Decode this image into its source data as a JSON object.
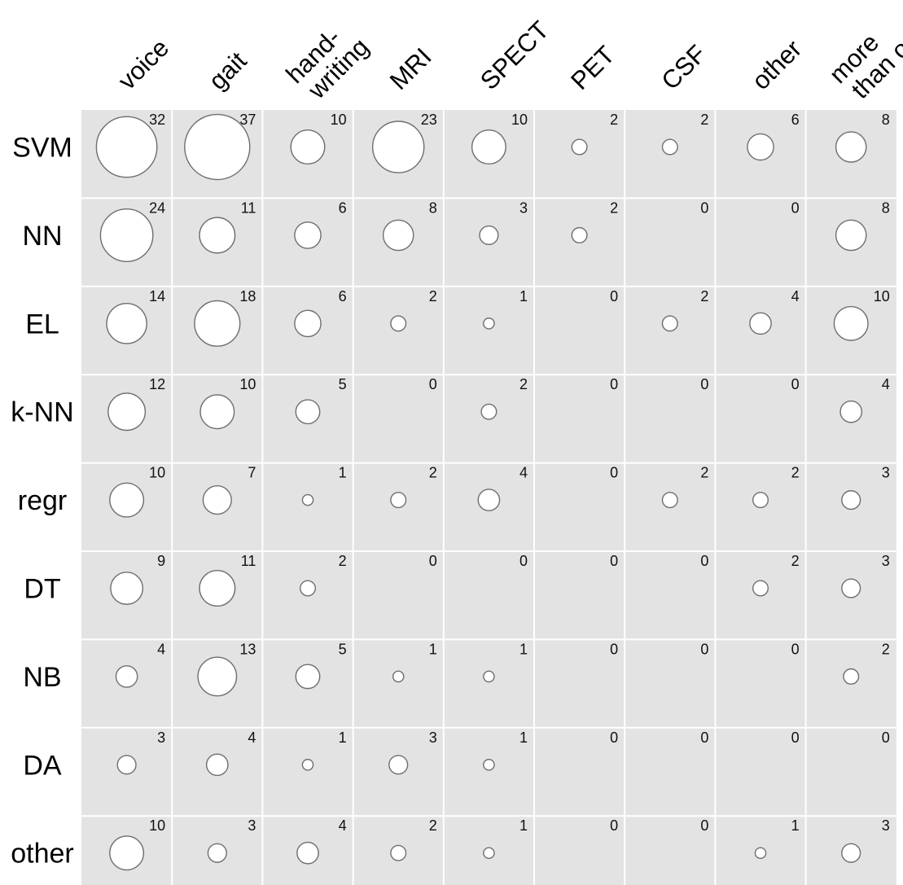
{
  "chart_data": {
    "type": "bubble-matrix",
    "columns": [
      [
        "voice"
      ],
      [
        "gait"
      ],
      [
        "hand-",
        "writing"
      ],
      [
        "MRI"
      ],
      [
        "SPECT"
      ],
      [
        "PET"
      ],
      [
        "CSF"
      ],
      [
        "other"
      ],
      [
        "more",
        "than one"
      ]
    ],
    "rows": [
      "SVM",
      "NN",
      "EL",
      "k-NN",
      "regr",
      "DT",
      "NB",
      "DA",
      "other"
    ],
    "values": [
      [
        32,
        37,
        10,
        23,
        10,
        2,
        2,
        6,
        8
      ],
      [
        24,
        11,
        6,
        8,
        3,
        2,
        0,
        0,
        8
      ],
      [
        14,
        18,
        6,
        2,
        1,
        0,
        2,
        4,
        10
      ],
      [
        12,
        10,
        5,
        0,
        2,
        0,
        0,
        0,
        4
      ],
      [
        10,
        7,
        1,
        2,
        4,
        0,
        2,
        2,
        3
      ],
      [
        9,
        11,
        2,
        0,
        0,
        0,
        0,
        2,
        3
      ],
      [
        4,
        13,
        5,
        1,
        1,
        0,
        0,
        0,
        2
      ],
      [
        3,
        4,
        1,
        3,
        1,
        0,
        0,
        0,
        0
      ],
      [
        10,
        3,
        4,
        2,
        1,
        0,
        0,
        1,
        3
      ]
    ],
    "max_value": 37,
    "grid": true,
    "cell_color": "#e3e3e3",
    "bubble_fill": "#ffffff",
    "bubble_stroke": "#6e6e6e"
  }
}
